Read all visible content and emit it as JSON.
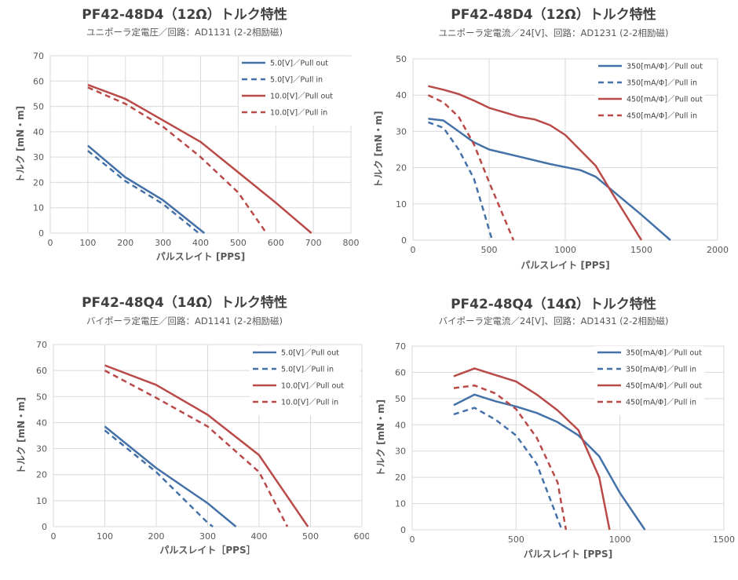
{
  "colors": {
    "blue": "#4472a8",
    "red": "#b94a48"
  },
  "chart_data": [
    {
      "type": "line",
      "title": "PF42-48D4（12Ω）トルク特性",
      "subtitle": "ユニポーラ定電圧／回路：AD1131 (2-2相励磁)",
      "xlabel": "パルスレイト [PPS]",
      "ylabel": "トルク [mN・m]",
      "xlim": [
        0,
        800
      ],
      "xticks": [
        0,
        100,
        200,
        300,
        400,
        500,
        600,
        700,
        800
      ],
      "ylim": [
        0,
        70
      ],
      "yticks": [
        0,
        10,
        20,
        30,
        40,
        50,
        60,
        70
      ],
      "legend_position": "top-right",
      "series": [
        {
          "name": "5.0[V]／Pull out",
          "color": "blue",
          "dash": false,
          "x": [
            100,
            200,
            300,
            410
          ],
          "y": [
            34.5,
            22,
            13,
            0
          ]
        },
        {
          "name": "5.0[V]／Pull in",
          "color": "blue",
          "dash": true,
          "x": [
            100,
            200,
            300,
            395
          ],
          "y": [
            32.5,
            20.5,
            11.5,
            0
          ]
        },
        {
          "name": "10.0[V]／Pull out",
          "color": "red",
          "dash": false,
          "x": [
            100,
            200,
            300,
            400,
            500,
            600,
            695
          ],
          "y": [
            58.5,
            53,
            44.5,
            36,
            24,
            12,
            0
          ]
        },
        {
          "name": "10.0[V]／Pull in",
          "color": "red",
          "dash": true,
          "x": [
            100,
            200,
            300,
            400,
            500,
            575
          ],
          "y": [
            57.5,
            51,
            42,
            30,
            16,
            0
          ]
        }
      ]
    },
    {
      "type": "line",
      "title": "PF42-48D4（12Ω）トルク特性",
      "subtitle": "ユニポーラ定電流／24[V]、回路：AD1231 (2-2相励磁)",
      "xlabel": "パルスレイト [PPS]",
      "ylabel": "トルク [mN・m]",
      "xlim": [
        0,
        2000
      ],
      "xticks": [
        0,
        500,
        1000,
        1500,
        2000
      ],
      "ylim": [
        0,
        50
      ],
      "yticks": [
        0,
        10,
        20,
        30,
        40,
        50
      ],
      "legend_position": "top-right",
      "series": [
        {
          "name": "350[mA/Φ]／Pull out",
          "color": "blue",
          "dash": false,
          "x": [
            100,
            200,
            300,
            400,
            500,
            700,
            900,
            1100,
            1200,
            1300,
            1500,
            1690
          ],
          "y": [
            33.5,
            33,
            30,
            27,
            25,
            23,
            21,
            19.3,
            17.5,
            14,
            7,
            0
          ]
        },
        {
          "name": "350[mA/Φ]／Pull in",
          "color": "blue",
          "dash": true,
          "x": [
            100,
            200,
            300,
            400,
            450,
            520
          ],
          "y": [
            32.5,
            31,
            25,
            17,
            10,
            0
          ]
        },
        {
          "name": "450[mA/Φ]／Pull out",
          "color": "red",
          "dash": false,
          "x": [
            100,
            200,
            300,
            400,
            500,
            700,
            800,
            900,
            1000,
            1200,
            1300,
            1500
          ],
          "y": [
            42.5,
            41.5,
            40.3,
            38.5,
            36.5,
            34,
            33.3,
            31.7,
            29,
            20.5,
            13.5,
            0
          ]
        },
        {
          "name": "450[mA/Φ]／Pull in",
          "color": "red",
          "dash": true,
          "x": [
            100,
            200,
            300,
            400,
            500,
            600,
            660
          ],
          "y": [
            40,
            38,
            34,
            26.5,
            16,
            6,
            0
          ]
        }
      ]
    },
    {
      "type": "line",
      "title": "PF42-48Q4（14Ω）トルク特性",
      "subtitle": "バイポーラ定電圧／回路：AD1141 (2-2相励磁)",
      "xlabel": "パルスレイト［PPS］",
      "ylabel": "トルク [mN・m]",
      "xlim": [
        0,
        600
      ],
      "xticks": [
        0,
        100,
        200,
        300,
        400,
        500,
        600
      ],
      "ylim": [
        0,
        70
      ],
      "yticks": [
        0,
        10,
        20,
        30,
        40,
        50,
        60,
        70
      ],
      "legend_position": "top-right",
      "series": [
        {
          "name": "5.0[V]／Pull out",
          "color": "blue",
          "dash": false,
          "x": [
            100,
            200,
            300,
            355
          ],
          "y": [
            38.5,
            22.5,
            9,
            0
          ]
        },
        {
          "name": "5.0[V]／Pull in",
          "color": "blue",
          "dash": true,
          "x": [
            100,
            200,
            300,
            310
          ],
          "y": [
            37,
            21,
            1.5,
            0
          ]
        },
        {
          "name": "10.0[V]／Pull out",
          "color": "red",
          "dash": false,
          "x": [
            100,
            200,
            300,
            400,
            495
          ],
          "y": [
            62,
            54.5,
            43,
            27.5,
            0
          ]
        },
        {
          "name": "10.0[V]／Pull in",
          "color": "red",
          "dash": true,
          "x": [
            100,
            200,
            300,
            400,
            455
          ],
          "y": [
            60,
            49.5,
            38.5,
            21,
            0
          ]
        }
      ]
    },
    {
      "type": "line",
      "title": "PF42-48Q4（14Ω）トルク特性",
      "subtitle": "バイポーラ定電流／24[V]、回路：AD1431 (2-2相励磁)",
      "xlabel": "パルスレイト [PPS]",
      "ylabel": "トルク [mN・m]",
      "xlim": [
        0,
        1500
      ],
      "xticks": [
        0,
        500,
        1000,
        1500
      ],
      "ylim": [
        0,
        70
      ],
      "yticks": [
        0,
        10,
        20,
        30,
        40,
        50,
        60,
        70
      ],
      "legend_position": "top-right",
      "series": [
        {
          "name": "350[mA/Φ]／Pull out",
          "color": "blue",
          "dash": false,
          "x": [
            200,
            300,
            400,
            500,
            600,
            700,
            800,
            900,
            1000,
            1120
          ],
          "y": [
            47.5,
            51.5,
            49,
            47,
            44.5,
            41,
            36,
            28,
            14,
            0
          ]
        },
        {
          "name": "350[mA/Φ]／Pull in",
          "color": "blue",
          "dash": true,
          "x": [
            200,
            300,
            400,
            500,
            600,
            720
          ],
          "y": [
            44,
            46.5,
            42,
            36,
            25,
            0
          ]
        },
        {
          "name": "450[mA/Φ]／Pull out",
          "color": "red",
          "dash": false,
          "x": [
            200,
            300,
            400,
            500,
            600,
            700,
            800,
            900,
            950
          ],
          "y": [
            58.5,
            61.5,
            59,
            56.5,
            51.5,
            45.5,
            38,
            20,
            0
          ]
        },
        {
          "name": "450[mA/Φ]／Pull in",
          "color": "red",
          "dash": true,
          "x": [
            200,
            300,
            400,
            500,
            600,
            700,
            740
          ],
          "y": [
            54,
            55,
            52,
            46,
            35,
            18,
            0
          ]
        }
      ]
    }
  ]
}
